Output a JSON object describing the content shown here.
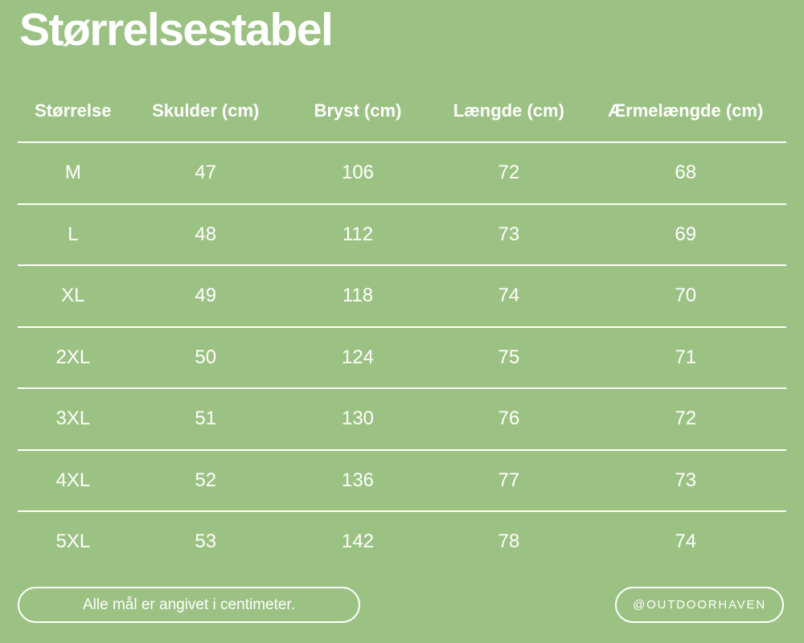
{
  "colors": {
    "background": "#9BC283",
    "text": "#FFFFFF",
    "divider_line": "#FFFFFF"
  },
  "chart_data": {
    "type": "table",
    "title": "Størrelsestabel",
    "columns": [
      "Størrelse",
      "Skulder (cm)",
      "Bryst (cm)",
      "Længde (cm)",
      "Ærmelængde (cm)"
    ],
    "rows": [
      [
        "M",
        "47",
        "106",
        "72",
        "68"
      ],
      [
        "L",
        "48",
        "112",
        "73",
        "69"
      ],
      [
        "XL",
        "49",
        "118",
        "74",
        "70"
      ],
      [
        "2XL",
        "50",
        "124",
        "75",
        "71"
      ],
      [
        "3XL",
        "51",
        "130",
        "76",
        "72"
      ],
      [
        "4XL",
        "52",
        "136",
        "77",
        "73"
      ],
      [
        "5XL",
        "53",
        "142",
        "78",
        "74"
      ]
    ],
    "layout": {
      "grid": "horizontal-lines-only",
      "legend": "none"
    }
  },
  "footer": {
    "note": "Alle mål er angivet i centimeter.",
    "handle": "@OUTDOORHAVEN"
  }
}
